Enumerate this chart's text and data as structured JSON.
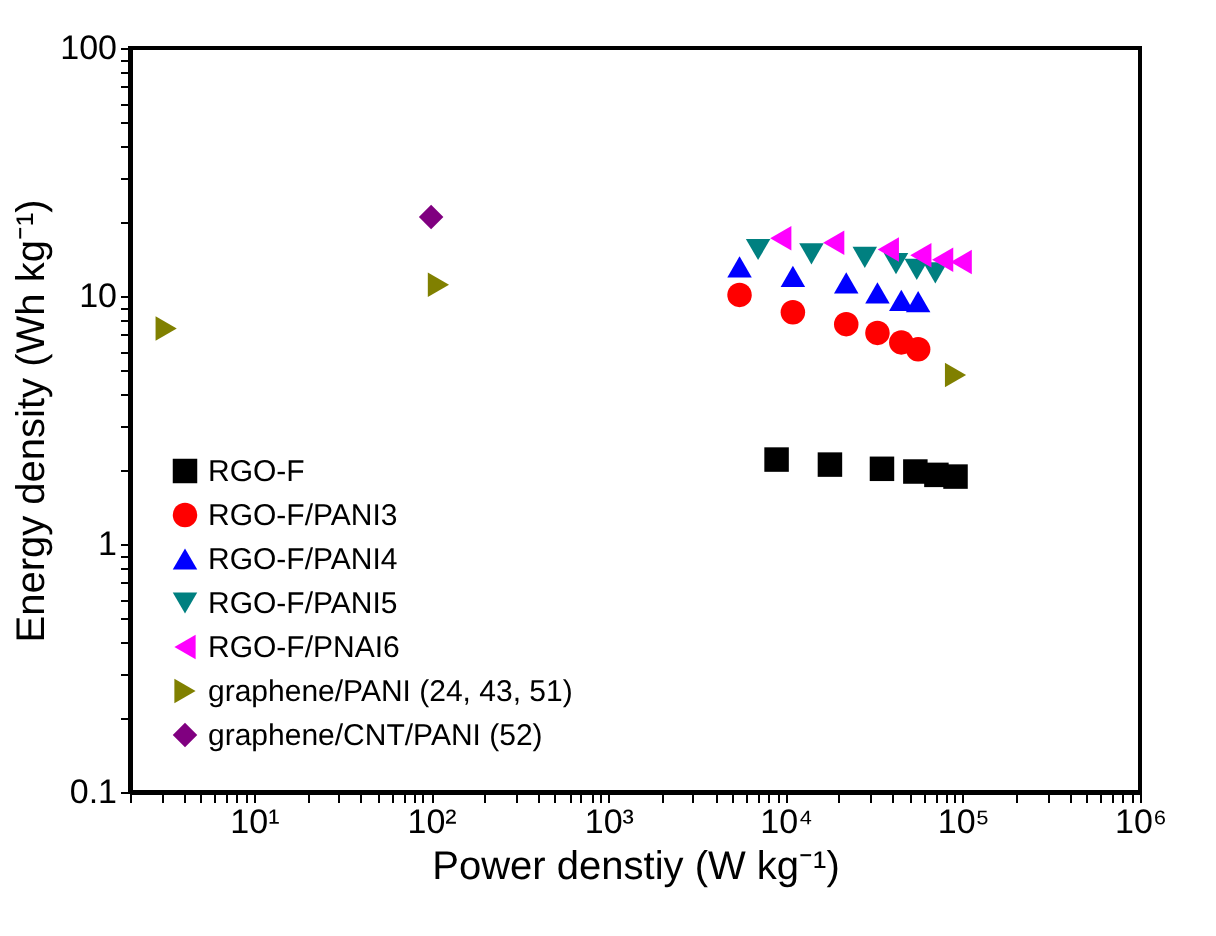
{
  "chart_data": {
    "type": "scatter",
    "xlabel": "Power denstiy (W kg⁻¹)",
    "ylabel": "Energy density (Wh kg⁻¹)",
    "log": "xy",
    "grid": false,
    "legend": "bottom left",
    "xlim": [
      2,
      1000000
    ],
    "ylim": [
      0.1,
      100
    ],
    "xticks": [
      {
        "value": 2,
        "label": null
      },
      {
        "value": 3,
        "label": null
      },
      {
        "value": 4,
        "label": null
      },
      {
        "value": 5,
        "label": null
      },
      {
        "value": 6,
        "label": null
      },
      {
        "value": 7,
        "label": null
      },
      {
        "value": 8,
        "label": null
      },
      {
        "value": 9,
        "label": null
      },
      {
        "value": 10,
        "label": "10¹"
      },
      {
        "value": 20,
        "label": null
      },
      {
        "value": 30,
        "label": null
      },
      {
        "value": 40,
        "label": null
      },
      {
        "value": 50,
        "label": null
      },
      {
        "value": 60,
        "label": null
      },
      {
        "value": 70,
        "label": null
      },
      {
        "value": 80,
        "label": null
      },
      {
        "value": 90,
        "label": null
      },
      {
        "value": 100,
        "label": "10²"
      },
      {
        "value": 200,
        "label": null
      },
      {
        "value": 300,
        "label": null
      },
      {
        "value": 400,
        "label": null
      },
      {
        "value": 500,
        "label": null
      },
      {
        "value": 600,
        "label": null
      },
      {
        "value": 700,
        "label": null
      },
      {
        "value": 800,
        "label": null
      },
      {
        "value": 900,
        "label": null
      },
      {
        "value": 1000,
        "label": "10³"
      },
      {
        "value": 2000,
        "label": null
      },
      {
        "value": 3000,
        "label": null
      },
      {
        "value": 4000,
        "label": null
      },
      {
        "value": 5000,
        "label": null
      },
      {
        "value": 6000,
        "label": null
      },
      {
        "value": 7000,
        "label": null
      },
      {
        "value": 8000,
        "label": null
      },
      {
        "value": 9000,
        "label": null
      },
      {
        "value": 10000,
        "label": "10⁴"
      },
      {
        "value": 20000,
        "label": null
      },
      {
        "value": 30000,
        "label": null
      },
      {
        "value": 40000,
        "label": null
      },
      {
        "value": 50000,
        "label": null
      },
      {
        "value": 60000,
        "label": null
      },
      {
        "value": 70000,
        "label": null
      },
      {
        "value": 80000,
        "label": null
      },
      {
        "value": 90000,
        "label": null
      },
      {
        "value": 100000,
        "label": "10⁵"
      },
      {
        "value": 200000,
        "label": null
      },
      {
        "value": 300000,
        "label": null
      },
      {
        "value": 400000,
        "label": null
      },
      {
        "value": 500000,
        "label": null
      },
      {
        "value": 600000,
        "label": null
      },
      {
        "value": 700000,
        "label": null
      },
      {
        "value": 800000,
        "label": null
      },
      {
        "value": 900000,
        "label": null
      },
      {
        "value": 1000000,
        "label": "10⁶"
      }
    ],
    "yticks": [
      0.1,
      {
        "value": 0.2,
        "label": null
      },
      {
        "value": 0.3,
        "label": null
      },
      {
        "value": 0.4,
        "label": null
      },
      {
        "value": 0.5,
        "label": null
      },
      {
        "value": 0.6,
        "label": null
      },
      {
        "value": 0.7,
        "label": null
      },
      {
        "value": 0.8,
        "label": null
      },
      {
        "value": 0.9,
        "label": null
      },
      1,
      {
        "value": 2,
        "label": null
      },
      {
        "value": 3,
        "label": null
      },
      {
        "value": 4,
        "label": null
      },
      {
        "value": 5,
        "label": null
      },
      {
        "value": 6,
        "label": null
      },
      {
        "value": 7,
        "label": null
      },
      {
        "value": 8,
        "label": null
      },
      {
        "value": 9,
        "label": null
      },
      10,
      {
        "value": 20,
        "label": null
      },
      {
        "value": 30,
        "label": null
      },
      {
        "value": 40,
        "label": null
      },
      {
        "value": 50,
        "label": null
      },
      {
        "value": 60,
        "label": null
      },
      {
        "value": 70,
        "label": null
      },
      {
        "value": 80,
        "label": null
      },
      {
        "value": 90,
        "label": null
      },
      100
    ],
    "series": [
      {
        "name": "RGO-F",
        "color": "#000000",
        "marker": "square",
        "x": [
          8900,
          17800,
          35000,
          54000,
          71000,
          91000
        ],
        "values": [
          2.19,
          2.09,
          2.01,
          1.96,
          1.9,
          1.87
        ]
      },
      {
        "name": "RGO-F/PANI3",
        "color": "#ff0000",
        "marker": "circle",
        "x": [
          5500,
          11000,
          22000,
          33000,
          45000,
          56000
        ],
        "values": [
          10.1,
          8.6,
          7.7,
          7.1,
          6.5,
          6.1
        ]
      },
      {
        "name": "RGO-F/PANI4",
        "color": "#0000ff",
        "marker": "triangle-up",
        "x": [
          5500,
          11000,
          22000,
          33000,
          45000,
          56000
        ],
        "values": [
          13.1,
          12.0,
          11.3,
          10.3,
          9.6,
          9.5
        ]
      },
      {
        "name": "RGO-F/PANI5",
        "color": "#008080",
        "marker": "triangle-down",
        "x": [
          7000,
          14000,
          28000,
          42000,
          55000,
          70000
        ],
        "values": [
          15.4,
          14.8,
          14.3,
          13.5,
          12.8,
          12.4
        ]
      },
      {
        "name": "RGO-F/PNAI6",
        "color": "#ff00ff",
        "marker": "triangle-left",
        "x": [
          9400,
          18700,
          38000,
          58000,
          77000,
          98000
        ],
        "values": [
          17.1,
          16.4,
          15.4,
          14.6,
          14.0,
          13.7
        ]
      },
      {
        "name": "graphene/PANI (24, 43, 51)",
        "color": "#808000",
        "marker": "triangle-right",
        "x": [
          3.2,
          110,
          91000
        ],
        "values": [
          7.4,
          11.1,
          4.8
        ]
      },
      {
        "name": "graphene/CNT/PANI (52)",
        "color": "#800080",
        "marker": "diamond",
        "x": [
          100
        ],
        "values": [
          20.8
        ]
      }
    ]
  }
}
